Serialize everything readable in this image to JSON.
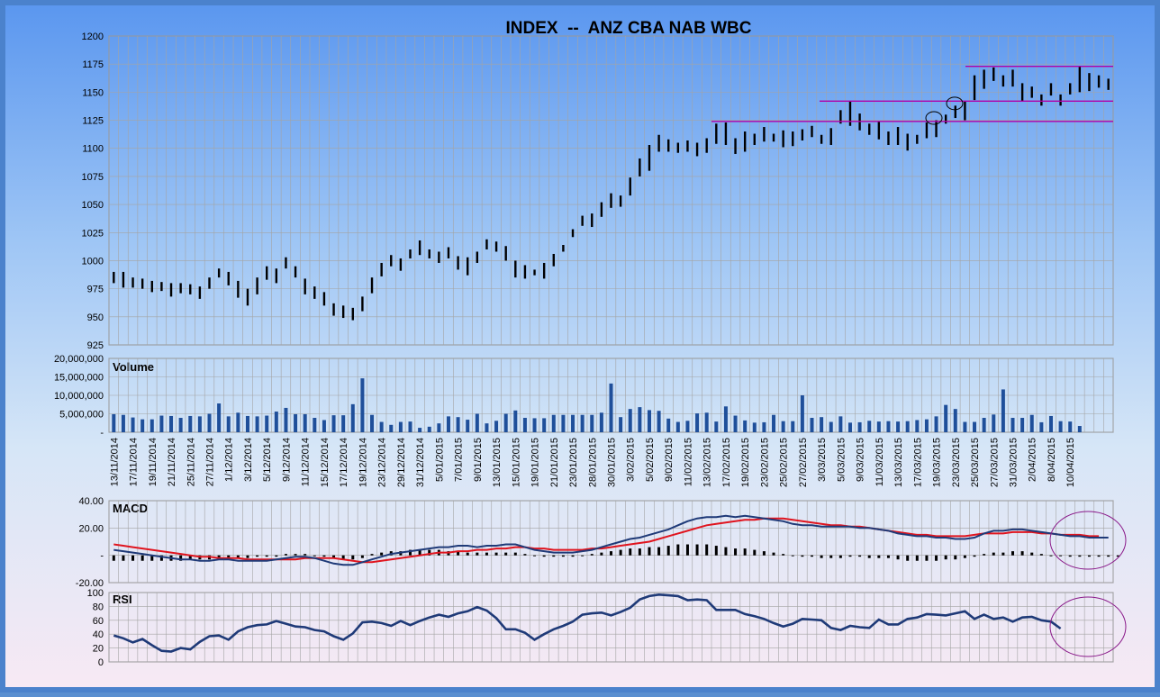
{
  "chart_data": [
    {
      "type": "bar",
      "subtype": "ohlc",
      "title": "INDEX  --  ANZ CBA NAB WBC",
      "ylim": [
        925,
        1200
      ],
      "yticks": [
        "1200",
        "1175",
        "1150",
        "1125",
        "1100",
        "1075",
        "1050",
        "1025",
        "1000",
        "975",
        "950",
        "925"
      ],
      "values": [
        [
          990,
          980
        ],
        [
          990,
          976
        ],
        [
          985,
          976
        ],
        [
          984,
          975
        ],
        [
          982,
          972
        ],
        [
          981,
          973
        ],
        [
          980,
          968
        ],
        [
          980,
          971
        ],
        [
          979,
          970
        ],
        [
          977,
          966
        ],
        [
          985,
          975
        ],
        [
          993,
          985
        ],
        [
          990,
          978
        ],
        [
          982,
          967
        ],
        [
          975,
          960
        ],
        [
          985,
          970
        ],
        [
          995,
          983
        ],
        [
          993,
          980
        ],
        [
          1003,
          993
        ],
        [
          995,
          985
        ],
        [
          984,
          970
        ],
        [
          977,
          966
        ],
        [
          972,
          960
        ],
        [
          962,
          951
        ],
        [
          960,
          949
        ],
        [
          958,
          947
        ],
        [
          968,
          955
        ],
        [
          985,
          971
        ],
        [
          998,
          986
        ],
        [
          1005,
          995
        ],
        [
          1002,
          991
        ],
        [
          1010,
          1002
        ],
        [
          1018,
          1005
        ],
        [
          1010,
          1002
        ],
        [
          1008,
          998
        ],
        [
          1012,
          1002
        ],
        [
          1004,
          992
        ],
        [
          1003,
          987
        ],
        [
          1008,
          998
        ],
        [
          1019,
          1010
        ],
        [
          1017,
          1008
        ],
        [
          1013,
          1000
        ],
        [
          1000,
          985
        ],
        [
          996,
          984
        ],
        [
          992,
          987
        ],
        [
          998,
          984
        ],
        [
          1006,
          995
        ],
        [
          1014,
          1008
        ],
        [
          1028,
          1021
        ],
        [
          1040,
          1031
        ],
        [
          1042,
          1030
        ],
        [
          1052,
          1039
        ],
        [
          1060,
          1047
        ],
        [
          1058,
          1048
        ],
        [
          1074,
          1058
        ],
        [
          1091,
          1075
        ],
        [
          1103,
          1080
        ],
        [
          1112,
          1097
        ],
        [
          1108,
          1097
        ],
        [
          1105,
          1096
        ],
        [
          1107,
          1097
        ],
        [
          1105,
          1093
        ],
        [
          1109,
          1096
        ],
        [
          1122,
          1104
        ],
        [
          1123,
          1103
        ],
        [
          1109,
          1095
        ],
        [
          1115,
          1097
        ],
        [
          1113,
          1103
        ],
        [
          1119,
          1106
        ],
        [
          1113,
          1106
        ],
        [
          1116,
          1101
        ],
        [
          1115,
          1102
        ],
        [
          1117,
          1107
        ],
        [
          1120,
          1110
        ],
        [
          1112,
          1104
        ],
        [
          1118,
          1103
        ],
        [
          1134,
          1122
        ],
        [
          1142,
          1120
        ],
        [
          1131,
          1116
        ],
        [
          1122,
          1112
        ],
        [
          1124,
          1108
        ],
        [
          1115,
          1103
        ],
        [
          1119,
          1103
        ],
        [
          1113,
          1098
        ],
        [
          1112,
          1104
        ],
        [
          1123,
          1109
        ],
        [
          1125,
          1110
        ],
        [
          1130,
          1122
        ],
        [
          1138,
          1127
        ],
        [
          1142,
          1125
        ],
        [
          1165,
          1143
        ],
        [
          1170,
          1153
        ],
        [
          1172,
          1160
        ],
        [
          1165,
          1155
        ],
        [
          1170,
          1155
        ],
        [
          1158,
          1142
        ],
        [
          1155,
          1145
        ],
        [
          1148,
          1138
        ],
        [
          1158,
          1147
        ],
        [
          1148,
          1138
        ],
        [
          1158,
          1148
        ],
        [
          1173,
          1150
        ],
        [
          1167,
          1151
        ],
        [
          1165,
          1154
        ],
        [
          1162,
          1152
        ]
      ],
      "resistance_lines": [
        1124,
        1142,
        1173
      ],
      "circled": [
        1127,
        1140
      ]
    },
    {
      "type": "bar",
      "title": "Volume",
      "ylim": [
        0,
        20000000
      ],
      "yticks": [
        "20,000,000",
        "15,000,000",
        "10,000,000",
        "5,000,000",
        "-"
      ],
      "values": [
        4900000,
        4700000,
        4000000,
        3500000,
        3500000,
        4500000,
        4400000,
        3900000,
        4400000,
        4300000,
        5000000,
        7800000,
        4300000,
        5300000,
        4400000,
        4300000,
        4500000,
        5600000,
        6600000,
        4900000,
        4900000,
        3900000,
        3300000,
        4600000,
        4600000,
        7600000,
        14600000,
        4700000,
        2800000,
        2000000,
        2800000,
        2900000,
        1200000,
        1500000,
        2400000,
        4300000,
        4100000,
        3400000,
        5000000,
        2400000,
        3100000,
        5000000,
        5900000,
        3900000,
        3800000,
        3800000,
        4700000,
        4700000,
        4700000,
        4700000,
        4700000,
        5300000,
        13200000,
        4100000,
        6300000,
        6800000,
        6000000,
        5800000,
        3700000,
        2800000,
        3100000,
        5100000,
        5300000,
        2900000,
        7000000,
        4500000,
        3200000,
        2600000,
        2700000,
        4700000,
        3000000,
        3000000,
        10000000,
        3900000,
        4100000,
        2800000,
        4300000,
        2600000,
        2700000,
        3100000,
        2900000,
        3000000,
        2900000,
        3000000,
        3300000,
        3500000,
        4300000,
        7400000,
        6300000,
        2800000,
        2800000,
        3900000,
        4800000,
        11600000,
        3900000,
        3900000,
        4700000,
        2700000,
        4400000,
        3000000,
        2900000,
        1700000
      ],
      "xticks": [
        "13/11/2014",
        "17/11/2014",
        "19/11/2014",
        "21/11/2014",
        "25/11/2014",
        "27/11/2014",
        "1/12/2014",
        "3/12/2014",
        "5/12/2014",
        "9/12/2014",
        "11/12/2014",
        "15/12/2014",
        "17/12/2014",
        "19/12/2014",
        "23/12/2014",
        "29/12/2014",
        "31/12/2014",
        "5/01/2015",
        "7/01/2015",
        "9/01/2015",
        "13/01/2015",
        "15/01/2015",
        "19/01/2015",
        "21/01/2015",
        "23/01/2015",
        "28/01/2015",
        "30/01/2015",
        "3/02/2015",
        "5/02/2015",
        "9/02/2015",
        "11/02/2015",
        "13/02/2015",
        "17/02/2015",
        "19/02/2015",
        "23/02/2015",
        "25/02/2015",
        "27/02/2015",
        "3/03/2015",
        "5/03/2015",
        "9/03/2015",
        "11/03/2015",
        "13/03/2015",
        "17/03/2015",
        "19/03/2015",
        "23/03/2015",
        "25/03/2015",
        "27/03/2015",
        "31/03/2015",
        "2/04/2015",
        "8/04/2015",
        "10/04/2015"
      ]
    },
    {
      "type": "line",
      "title": "MACD",
      "ylim": [
        -20,
        40
      ],
      "yticks": [
        "40.00",
        "20.00",
        "-",
        "-20.00"
      ],
      "series": [
        {
          "color": "#1f3a78",
          "values": [
            4,
            3,
            2,
            1,
            0,
            -1,
            -2,
            -3,
            -3,
            -4,
            -4,
            -3,
            -3,
            -4,
            -4,
            -4,
            -4,
            -3,
            -2,
            -1,
            -1,
            -2,
            -4,
            -6,
            -7,
            -7,
            -5,
            -3,
            -1,
            1,
            2,
            3,
            4,
            5,
            6,
            6,
            7,
            7,
            6,
            7,
            7,
            8,
            8,
            6,
            4,
            3,
            2,
            2,
            2,
            3,
            4,
            6,
            8,
            10,
            12,
            13,
            15,
            17,
            19,
            22,
            25,
            27,
            28,
            28,
            29,
            28,
            29,
            28,
            27,
            26,
            25,
            23,
            22,
            22,
            21,
            21,
            21,
            21,
            20,
            20,
            19,
            18,
            16,
            15,
            14,
            14,
            13,
            13,
            12,
            12,
            13,
            16,
            18,
            18,
            19,
            19,
            18,
            17,
            16,
            15,
            14,
            14,
            13,
            13,
            13
          ]
        },
        {
          "color": "#e0141e",
          "values": [
            8,
            7,
            6,
            5,
            4,
            3,
            2,
            1,
            0,
            -1,
            -1,
            -2,
            -2,
            -2,
            -3,
            -3,
            -3,
            -3,
            -3,
            -3,
            -2,
            -2,
            -2,
            -2,
            -3,
            -4,
            -5,
            -5,
            -4,
            -3,
            -2,
            -1,
            0,
            1,
            2,
            2,
            3,
            3,
            4,
            4,
            5,
            5,
            6,
            6,
            5,
            5,
            4,
            4,
            4,
            4,
            5,
            5,
            6,
            7,
            8,
            9,
            10,
            12,
            14,
            16,
            18,
            20,
            22,
            23,
            24,
            25,
            26,
            26,
            27,
            27,
            27,
            26,
            25,
            24,
            23,
            22,
            22,
            21,
            21,
            20,
            19,
            18,
            17,
            16,
            15,
            15,
            14,
            14,
            14,
            14,
            15,
            16,
            16,
            16,
            17,
            17,
            17,
            16,
            16,
            15,
            15,
            15,
            14,
            14
          ]
        },
        {
          "color": "#000000",
          "values": [
            -4,
            -4,
            -4,
            -4,
            -4,
            -4,
            -4,
            -4,
            -3,
            -3,
            -3,
            -2,
            -2,
            -2,
            -2,
            -1,
            -1,
            -1,
            1,
            1,
            1,
            0,
            -1,
            -2,
            -3,
            -3,
            -2,
            1,
            2,
            3,
            3,
            4,
            4,
            4,
            4,
            3,
            3,
            2,
            2,
            2,
            2,
            2,
            2,
            1,
            0,
            -1,
            -1,
            -1,
            -1,
            0,
            1,
            2,
            3,
            4,
            5,
            5,
            6,
            6,
            7,
            8,
            8,
            8,
            8,
            7,
            6,
            5,
            5,
            4,
            3,
            2,
            1,
            0,
            -1,
            -1,
            -2,
            -2,
            -2,
            -1,
            -1,
            -2,
            -2,
            -2,
            -3,
            -4,
            -4,
            -4,
            -4,
            -3,
            -3,
            -2,
            -1,
            1,
            2,
            2,
            3,
            3,
            2,
            1,
            0,
            0,
            -1,
            -1,
            -1,
            -1,
            -1,
            -1
          ]
        }
      ]
    },
    {
      "type": "line",
      "title": "RSI",
      "ylim": [
        0,
        100
      ],
      "yticks": [
        "100",
        "80",
        "60",
        "40",
        "20",
        "0"
      ],
      "series": [
        {
          "color": "#1f3a78",
          "values": [
            38,
            34,
            28,
            33,
            24,
            16,
            15,
            20,
            18,
            29,
            37,
            38,
            32,
            44,
            50,
            53,
            54,
            59,
            55,
            51,
            50,
            46,
            44,
            37,
            32,
            41,
            57,
            58,
            56,
            52,
            59,
            53,
            59,
            64,
            68,
            65,
            70,
            73,
            79,
            74,
            63,
            47,
            47,
            42,
            32,
            40,
            47,
            52,
            58,
            68,
            70,
            71,
            67,
            72,
            78,
            90,
            95,
            97,
            96,
            95,
            89,
            90,
            89,
            75,
            75,
            75,
            69,
            66,
            62,
            56,
            51,
            55,
            62,
            61,
            60,
            49,
            46,
            52,
            50,
            49,
            61,
            54,
            54,
            62,
            64,
            69,
            68,
            67,
            70,
            73,
            62,
            68,
            62,
            64,
            58,
            64,
            65,
            60,
            58,
            48
          ]
        }
      ]
    }
  ]
}
